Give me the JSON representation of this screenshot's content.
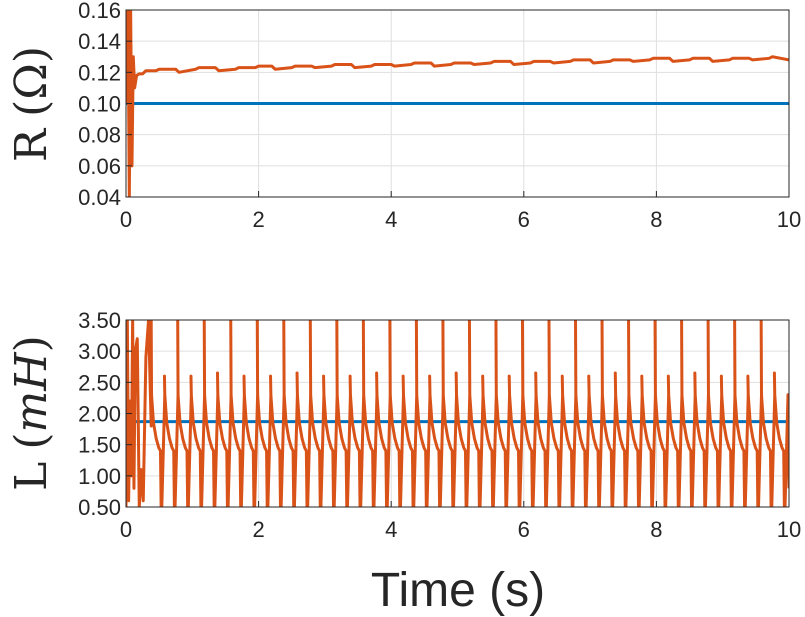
{
  "chart_data": [
    {
      "type": "line",
      "ylabel_main": "R",
      "ylabel_unit": "(Ω)",
      "xlim": [
        0,
        10
      ],
      "ylim": [
        0.04,
        0.16
      ],
      "xticks": [
        "0",
        "2",
        "4",
        "6",
        "8",
        "10"
      ],
      "yticks": [
        "0.04",
        "0.06",
        "0.08",
        "0.10",
        "0.12",
        "0.14",
        "0.16"
      ],
      "grid": true,
      "series": [
        {
          "color": "#0072BD",
          "x": [
            0,
            10
          ],
          "y": [
            0.1,
            0.1
          ]
        },
        {
          "color": "#D95319",
          "x": [
            0.0,
            0.03,
            0.05,
            0.07,
            0.09,
            0.11,
            0.13,
            0.16,
            0.2,
            0.25,
            0.3,
            0.45,
            0.5,
            0.75,
            0.8,
            1.05,
            1.1,
            1.35,
            1.4,
            1.65,
            1.7,
            1.95,
            2.0,
            2.2,
            2.25,
            2.5,
            2.55,
            2.8,
            2.85,
            3.1,
            3.15,
            3.4,
            3.45,
            3.7,
            3.75,
            4.0,
            4.05,
            4.3,
            4.35,
            4.6,
            4.65,
            4.9,
            4.95,
            5.2,
            5.25,
            5.5,
            5.55,
            5.8,
            5.85,
            6.1,
            6.15,
            6.4,
            6.45,
            6.7,
            6.75,
            7.0,
            7.05,
            7.3,
            7.35,
            7.6,
            7.65,
            7.9,
            7.95,
            8.2,
            8.25,
            8.5,
            8.55,
            8.8,
            8.85,
            9.1,
            9.15,
            9.4,
            9.45,
            9.7,
            9.75,
            10.0
          ],
          "y": [
            0.1,
            0.16,
            0.04,
            0.16,
            0.06,
            0.13,
            0.11,
            0.118,
            0.119,
            0.119,
            0.121,
            0.121,
            0.122,
            0.122,
            0.12,
            0.122,
            0.123,
            0.123,
            0.121,
            0.122,
            0.123,
            0.123,
            0.124,
            0.124,
            0.122,
            0.123,
            0.124,
            0.124,
            0.123,
            0.124,
            0.125,
            0.125,
            0.123,
            0.124,
            0.125,
            0.125,
            0.124,
            0.125,
            0.126,
            0.126,
            0.124,
            0.125,
            0.126,
            0.126,
            0.125,
            0.126,
            0.127,
            0.127,
            0.125,
            0.126,
            0.127,
            0.127,
            0.126,
            0.127,
            0.128,
            0.128,
            0.126,
            0.127,
            0.128,
            0.128,
            0.127,
            0.128,
            0.129,
            0.129,
            0.127,
            0.128,
            0.129,
            0.129,
            0.127,
            0.128,
            0.129,
            0.129,
            0.128,
            0.129,
            0.13,
            0.128
          ]
        }
      ]
    },
    {
      "type": "line",
      "ylabel_main": "L",
      "ylabel_unit": "mH",
      "xlim": [
        0,
        10
      ],
      "ylim": [
        0.5,
        3.5
      ],
      "xticks": [
        "0",
        "2",
        "4",
        "6",
        "8",
        "10"
      ],
      "yticks": [
        "0.50",
        "1.00",
        "1.50",
        "2.00",
        "2.50",
        "3.00",
        "3.50"
      ],
      "grid": true,
      "series": [
        {
          "color": "#0072BD",
          "x": [
            0,
            10
          ],
          "y": [
            1.87,
            1.87
          ]
        },
        {
          "color": "#D95319",
          "initial": {
            "x": [
              0.0,
              0.02,
              0.04,
              0.06,
              0.08,
              0.1,
              0.12,
              0.14,
              0.17,
              0.2,
              0.23,
              0.26,
              0.3,
              0.34,
              0.38
            ],
            "y": [
              0.5,
              3.5,
              0.6,
              2.2,
              1.0,
              3.5,
              0.8,
              3.0,
              3.2,
              0.5,
              1.1,
              0.6,
              2.9,
              3.5,
              1.8
            ]
          },
          "cycle": {
            "start": 0.38,
            "period": 0.2,
            "count": 48,
            "peaks": [
              3.5,
              2.6,
              3.5,
              2.6,
              3.5,
              2.65
            ],
            "shape_t": [
              0.0,
              0.03,
              0.07,
              0.11,
              0.135,
              0.145,
              0.155,
              0.2
            ],
            "shape_y": [
              2.3,
              1.85,
              1.6,
              1.45,
              1.4,
              0.5,
              0.5,
              2.3
            ]
          },
          "final": {
            "x": 10.0,
            "y": 0.8
          }
        }
      ]
    }
  ],
  "xlabel": "Time (s)"
}
